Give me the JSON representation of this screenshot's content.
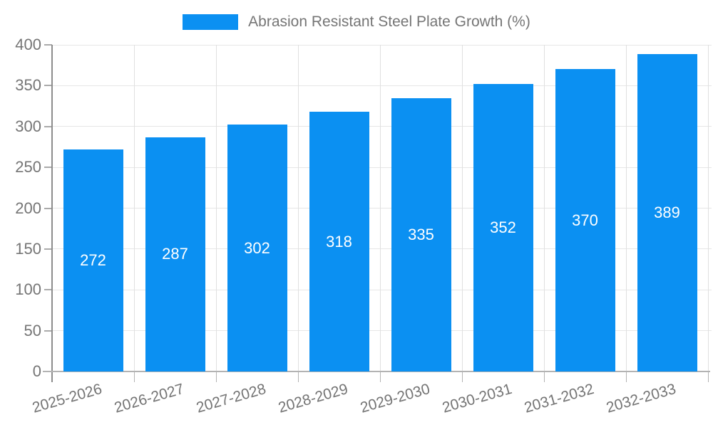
{
  "chart_data": {
    "type": "bar",
    "title": "Abrasion Resistant Steel Plate Growth (%)",
    "legend": "Abrasion Resistant Steel Plate Growth (%)",
    "legend_position": "top",
    "categories": [
      "2025-2026",
      "2026-2027",
      "2027-2028",
      "2028-2029",
      "2029-2030",
      "2030-2031",
      "2031-2032",
      "2032-2033"
    ],
    "values": [
      272,
      287,
      302,
      318,
      335,
      352,
      370,
      389
    ],
    "xlabel": "",
    "ylabel": "",
    "ylim": [
      0,
      400
    ],
    "ytick_step": 50,
    "ytick_labels": [
      "0",
      "50",
      "100",
      "150",
      "200",
      "250",
      "300",
      "350",
      "400"
    ],
    "grid": true,
    "value_labels_inside": true,
    "colors": {
      "bar": "#0b90f2",
      "value_label": "#ffffff",
      "tick_text": "#757575",
      "gridline": "#e6e6e6",
      "axis_y": "#8c8c8c",
      "axis_x": "#b3b3b3"
    }
  }
}
